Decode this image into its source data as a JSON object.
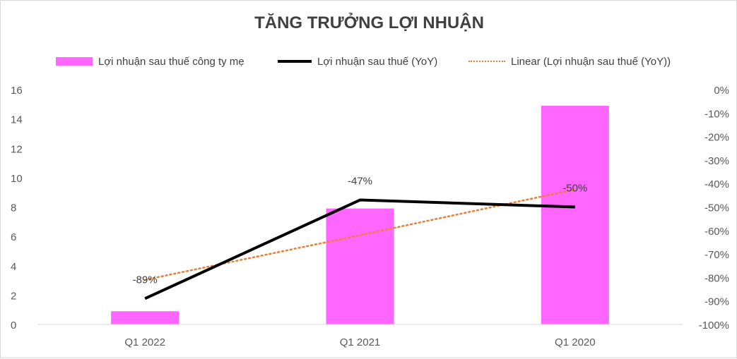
{
  "chart_data": {
    "type": "bar",
    "title": "TĂNG TRƯỞNG LỢI NHUẬN",
    "categories": [
      "Q1 2022",
      "Q1 2021",
      "Q1 2020"
    ],
    "series": [
      {
        "name": "Lợi nhuận sau thuế công ty mẹ",
        "type": "bar",
        "axis": "left",
        "color": "#ff66ff",
        "values": [
          0.9,
          7.9,
          14.9
        ]
      },
      {
        "name": "Lợi nhuận sau thuế (YoY)",
        "type": "line",
        "axis": "right",
        "color": "#000000",
        "values": [
          -89,
          -47,
          -50
        ],
        "data_labels": [
          "-89%",
          "-47%",
          "-50%"
        ]
      },
      {
        "name": "Linear (Lợi nhuận sau thuế (YoY))",
        "type": "trendline",
        "axis": "right",
        "color": "#ed7d31",
        "values": [
          -81,
          -62,
          -42.5
        ]
      }
    ],
    "y_left": {
      "range": [
        0,
        16
      ],
      "ticks": [
        "0",
        "2",
        "4",
        "6",
        "8",
        "10",
        "12",
        "14",
        "16"
      ]
    },
    "y_right": {
      "range": [
        -100,
        0
      ],
      "ticks": [
        "-100%",
        "-90%",
        "-80%",
        "-70%",
        "-60%",
        "-50%",
        "-40%",
        "-30%",
        "-20%",
        "-10%",
        "0%"
      ]
    },
    "grid": false,
    "legend_position": "top"
  }
}
